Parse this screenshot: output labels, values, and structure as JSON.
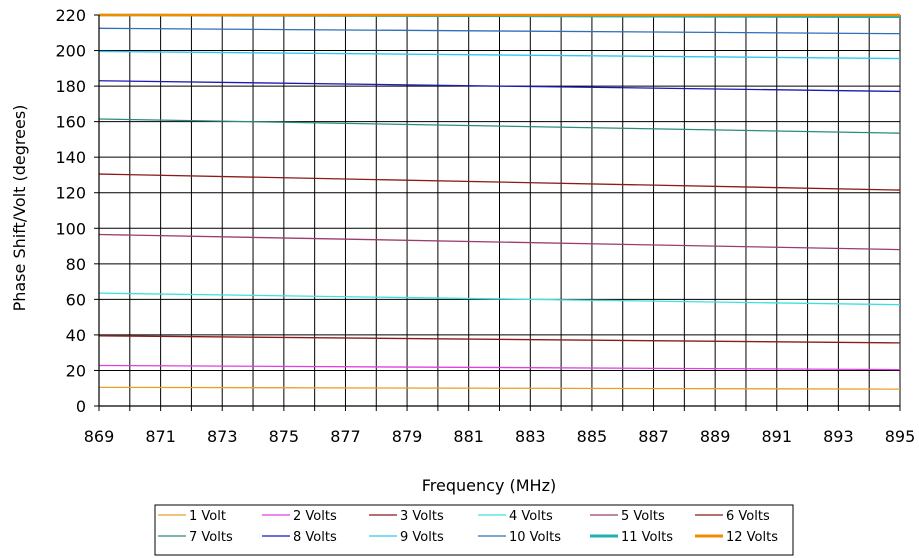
{
  "chart_data": {
    "type": "line",
    "xlabel": "Frequency (MHz)",
    "ylabel": "Phase Shift/Volt (degrees)",
    "xlim": [
      869,
      895
    ],
    "ylim": [
      0,
      220
    ],
    "x_ticks": [
      "869",
      "871",
      "873",
      "875",
      "877",
      "879",
      "881",
      "883",
      "885",
      "887",
      "889",
      "891",
      "893",
      "895"
    ],
    "y_ticks": [
      "0",
      "20",
      "40",
      "60",
      "80",
      "100",
      "120",
      "140",
      "160",
      "180",
      "200",
      "220"
    ],
    "grid": "major and minor vertical gridlines every 1 MHz, horizontal every 20",
    "legend_placement": "bottom",
    "x": [
      869,
      895
    ],
    "series": [
      {
        "name": "1 Volt",
        "color": "#E8A02A",
        "values": [
          10.5,
          9.5
        ]
      },
      {
        "name": "2 Volts",
        "color": "#E040E0",
        "values": [
          22.8,
          20.5
        ]
      },
      {
        "name": "3 Volts",
        "color": "#8B1A1A",
        "values": [
          39.5,
          35.5
        ]
      },
      {
        "name": "4 Volts",
        "color": "#40E0E0",
        "values": [
          63.5,
          57.0
        ]
      },
      {
        "name": "5 Volts",
        "color": "#9B3D6B",
        "values": [
          96.5,
          88.0
        ]
      },
      {
        "name": "6 Volts",
        "color": "#8B1A1A",
        "values": [
          130.5,
          121.5
        ]
      },
      {
        "name": "7 Volts",
        "color": "#2E8B7A",
        "values": [
          161.5,
          153.5
        ]
      },
      {
        "name": "8 Volts",
        "color": "#1A1AB4",
        "values": [
          183.0,
          177.0
        ]
      },
      {
        "name": "9 Volts",
        "color": "#30C8F0",
        "values": [
          199.5,
          195.5
        ]
      },
      {
        "name": "10 Volts",
        "color": "#2F6FB8",
        "values": [
          212.5,
          209.5
        ]
      },
      {
        "name": "11 Volts",
        "color": "#20B0B0",
        "values": [
          220.0,
          219.0
        ]
      },
      {
        "name": "12 Volts",
        "color": "#F08C00",
        "values": [
          220.0,
          220.0
        ]
      }
    ]
  }
}
